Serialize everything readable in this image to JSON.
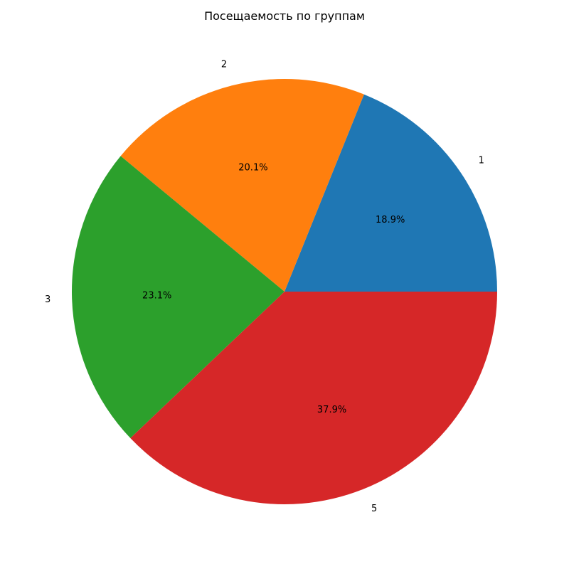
{
  "chart_data": {
    "type": "pie",
    "title": "Посещаемость по группам",
    "start_angle_deg": 0,
    "direction": "counterclockwise",
    "slices": [
      {
        "label": "1",
        "percent_label": "18.9%",
        "value": 18.9,
        "color": "#1f77b4"
      },
      {
        "label": "2",
        "percent_label": "20.1%",
        "value": 20.1,
        "color": "#ff7f0e"
      },
      {
        "label": "3",
        "percent_label": "23.1%",
        "value": 23.1,
        "color": "#2ca02c"
      },
      {
        "label": "5",
        "percent_label": "37.9%",
        "value": 37.9,
        "color": "#d62728"
      }
    ]
  }
}
